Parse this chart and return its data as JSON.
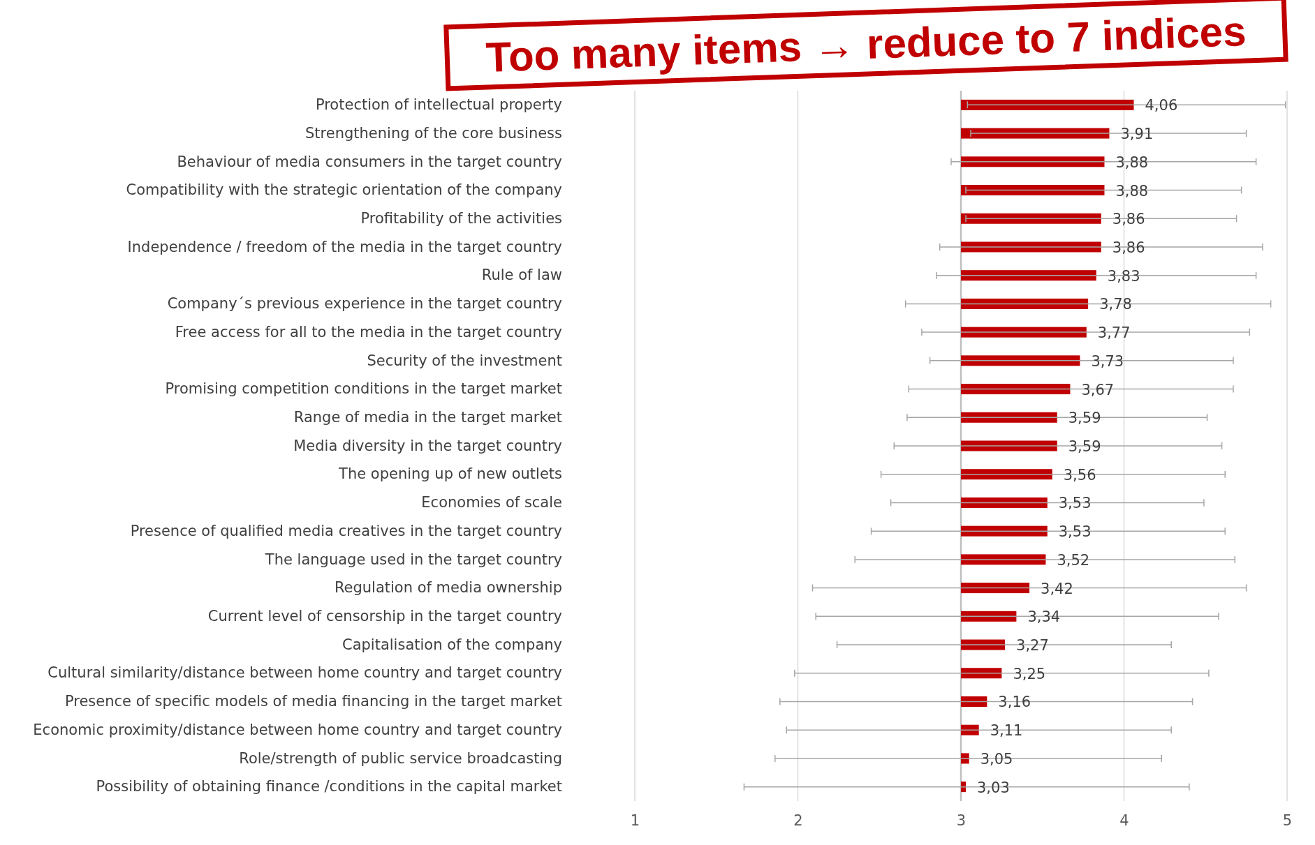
{
  "chart_data": {
    "type": "bar",
    "orientation": "horizontal",
    "categories": [
      "Protection of intellectual property",
      "Strengthening of the core business",
      "Behaviour of media consumers in the target country",
      "Compatibility with the strategic orientation of the company",
      "Profitability of the activities",
      "Independence / freedom of the media in the target country",
      "Rule of law",
      "Company´s previous experience in the target country",
      "Free access for all to the media in the target country",
      "Security of the investment",
      "Promising competition conditions in the target market",
      "Range of media in the target market",
      "Media diversity in the target country",
      "The opening up of new outlets",
      "Economies of scale",
      "Presence of qualified media creatives in the target country",
      "The language used in the target country",
      "Regulation of media ownership",
      "Current level of censorship in the target country",
      "Capitalisation of the company ",
      "Cultural similarity/distance between home country and target country",
      "Presence of specific models of media financing in the target market",
      "Economic proximity/distance between home country and target country",
      "Role/strength of public service broadcasting",
      "Possibility of obtaining finance /conditions in the capital market"
    ],
    "base": [
      3,
      3,
      3,
      3,
      3,
      3,
      3,
      3,
      3,
      3,
      3,
      3,
      3,
      3,
      3,
      3,
      3,
      3,
      3,
      3,
      3,
      3,
      3,
      3,
      3
    ],
    "values": [
      1.06,
      0.91,
      0.88,
      0.88,
      0.86,
      0.86,
      0.83,
      0.78,
      0.77,
      0.73,
      0.67,
      0.59,
      0.59,
      0.56,
      0.53,
      0.53,
      0.52,
      0.42,
      0.34,
      0.27,
      0.25,
      0.16,
      0.11,
      0.05,
      0.03
    ],
    "value_labels": [
      "4,06",
      "3,91",
      "3,88",
      "3,88",
      "3,86",
      "3,86",
      "3,83",
      "3,78",
      "3,77",
      "3,73",
      "3,67",
      "3,59",
      "3,59",
      "3,56",
      "3,53",
      "3,53",
      "3,52",
      "3,42",
      "3,34",
      "3,27",
      "3,25",
      "3,16",
      "3,11",
      "3,05",
      "3,03"
    ],
    "errors": [
      [
        3.04,
        4.99
      ],
      [
        3.06,
        4.75
      ],
      [
        2.94,
        4.81
      ],
      [
        3.03,
        4.72
      ],
      [
        3.03,
        4.69
      ],
      [
        2.87,
        4.85
      ],
      [
        2.85,
        4.81
      ],
      [
        2.66,
        4.9
      ],
      [
        2.76,
        4.77
      ],
      [
        2.81,
        4.67
      ],
      [
        2.68,
        4.67
      ],
      [
        2.67,
        4.51
      ],
      [
        2.59,
        4.6
      ],
      [
        2.51,
        4.62
      ],
      [
        2.57,
        4.49
      ],
      [
        2.45,
        4.62
      ],
      [
        2.35,
        4.68
      ],
      [
        2.09,
        4.75
      ],
      [
        2.11,
        4.58
      ],
      [
        2.24,
        4.29
      ],
      [
        1.98,
        4.52
      ],
      [
        1.89,
        4.42
      ],
      [
        1.93,
        4.29
      ],
      [
        1.86,
        4.23
      ],
      [
        1.67,
        4.4
      ]
    ],
    "color": "#c00000",
    "xlim": [
      1,
      5
    ],
    "xticks": [
      1,
      2,
      3,
      4,
      5
    ],
    "grid": "x",
    "ref_lines": [
      {
        "axis": "x",
        "value": 3,
        "color": "#bfbfbf"
      }
    ],
    "annotations": [
      "Too many items → reduce to 7 indices"
    ]
  }
}
